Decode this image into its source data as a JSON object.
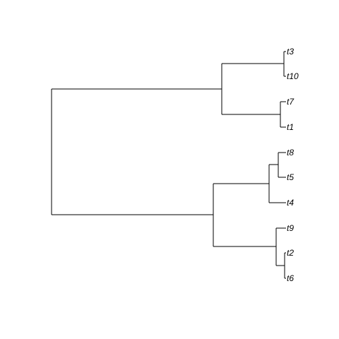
{
  "tree": {
    "newick": "(((t3,t10),(t7,t1)),(((t8,t5),t4),(t9,(t2,t6))));",
    "tip_order": [
      "t3",
      "t10",
      "t7",
      "t1",
      "t8",
      "t5",
      "t4",
      "t9",
      "t2",
      "t6"
    ],
    "tips": {
      "t3": "t3",
      "t10": "t10",
      "t7": "t7",
      "t1": "t1",
      "t8": "t8",
      "t5": "t5",
      "t4": "t4",
      "t9": "t9",
      "t2": "t2",
      "t6": "t6"
    },
    "label_style": "italic",
    "line_color": "#000000"
  }
}
